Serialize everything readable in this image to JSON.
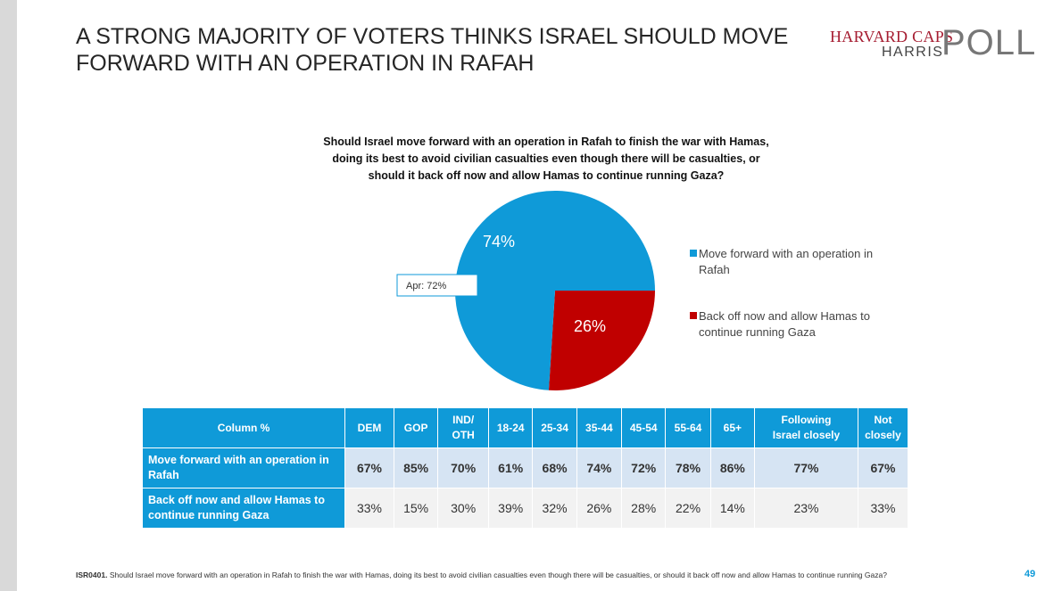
{
  "header": {
    "title": "A STRONG MAJORITY OF VOTERS THINKS ISRAEL SHOULD MOVE FORWARD WITH AN OPERATION IN RAFAH",
    "logo_top": "HARVARD CAPS",
    "logo_bottom": "HARRIS",
    "logo_big": "POLL"
  },
  "chart_data": {
    "type": "pie",
    "title": "Should Israel move forward with an operation in Rafah to finish the war with Hamas, doing its best to avoid civilian casualties even though there will be casualties, or should it back off now and allow Hamas to continue running Gaza?",
    "categories": [
      "Move forward with an operation in Rafah",
      "Back off now and allow Hamas to continue running Gaza"
    ],
    "values": [
      74,
      26
    ],
    "value_labels": [
      "74%",
      "26%"
    ],
    "colors": [
      "#0f9ad8",
      "#c00000"
    ],
    "annotation": "Apr: 72%"
  },
  "table": {
    "header": [
      "Column %",
      "DEM",
      "GOP",
      "IND/\nOTH",
      "18-24",
      "25-34",
      "35-44",
      "45-54",
      "55-64",
      "65+",
      "Following\nIsrael closely",
      "Not\nclosely"
    ],
    "rows": [
      [
        "Move forward with an operation in Rafah",
        "67%",
        "85%",
        "70%",
        "61%",
        "68%",
        "74%",
        "72%",
        "78%",
        "86%",
        "77%",
        "67%"
      ],
      [
        "Back off now and allow Hamas to continue running Gaza",
        "33%",
        "15%",
        "30%",
        "39%",
        "32%",
        "26%",
        "28%",
        "22%",
        "14%",
        "23%",
        "33%"
      ]
    ]
  },
  "footer": {
    "code": "ISR0401.",
    "text": "Should Israel move forward with an operation in Rafah to finish the war with Hamas, doing its best to avoid civilian casualties even though there will be casualties, or should it back off now and allow Hamas to continue running Gaza?",
    "page": "49"
  }
}
